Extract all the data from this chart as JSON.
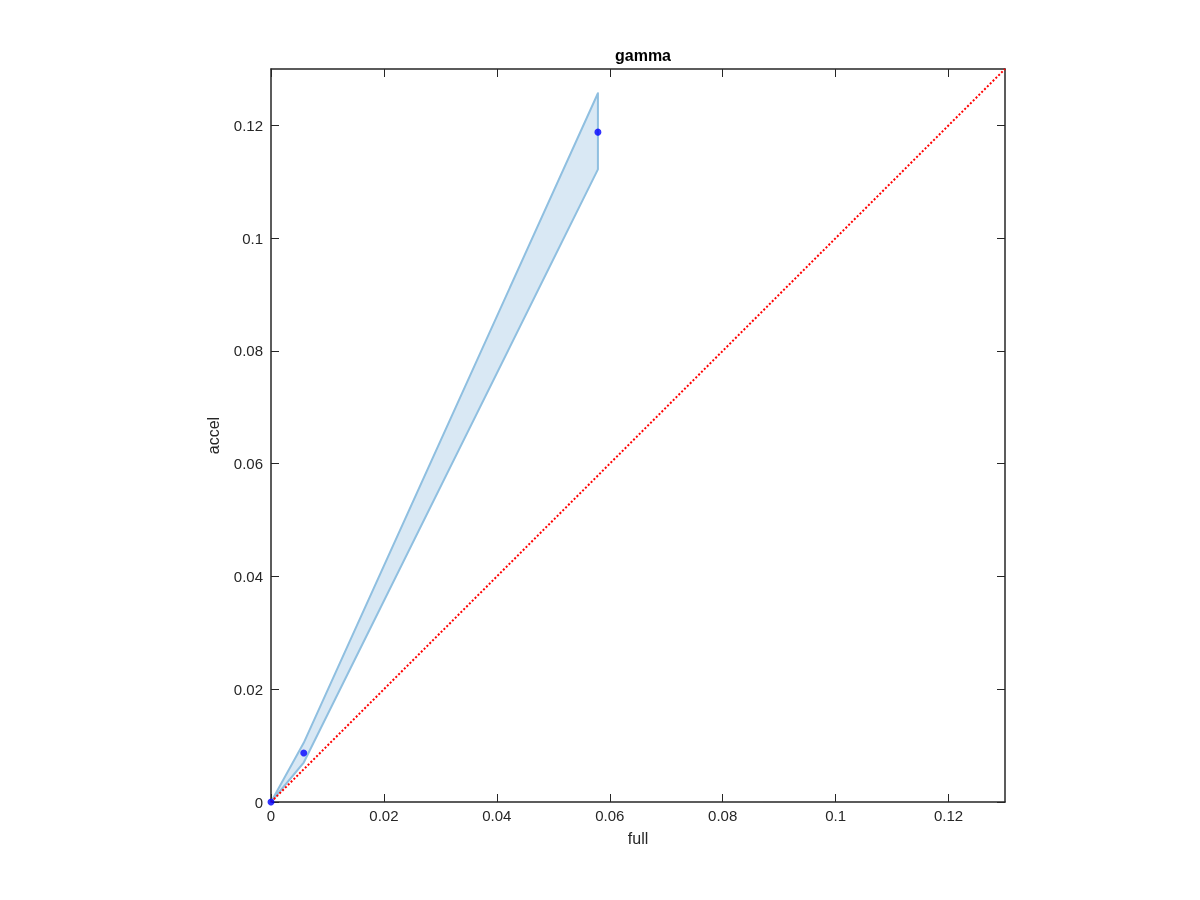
{
  "chart_data": {
    "type": "scatter",
    "title": "gamma",
    "xlabel": "full",
    "ylabel": "accel",
    "xlim": [
      0,
      0.13
    ],
    "ylim": [
      0,
      0.13
    ],
    "xticks": [
      0,
      0.02,
      0.04,
      0.06,
      0.08,
      0.1,
      0.12
    ],
    "yticks": [
      0,
      0.02,
      0.04,
      0.06,
      0.08,
      0.1,
      0.12
    ],
    "grid": false,
    "marker": "circle",
    "series": [
      {
        "type": "scatter",
        "color": "#0000ff",
        "x": [
          0,
          0.0058,
          0.0579
        ],
        "values": [
          0,
          0.0087,
          0.1188
        ],
        "lower": [
          0,
          0.007,
          0.1122
        ],
        "upper": [
          0,
          0.0105,
          0.1257
        ]
      },
      {
        "type": "line",
        "color": "#ff0000",
        "line_style": "dotted",
        "marker": "none",
        "x": [
          0,
          0.13
        ],
        "values": [
          0,
          0.13
        ]
      }
    ]
  }
}
